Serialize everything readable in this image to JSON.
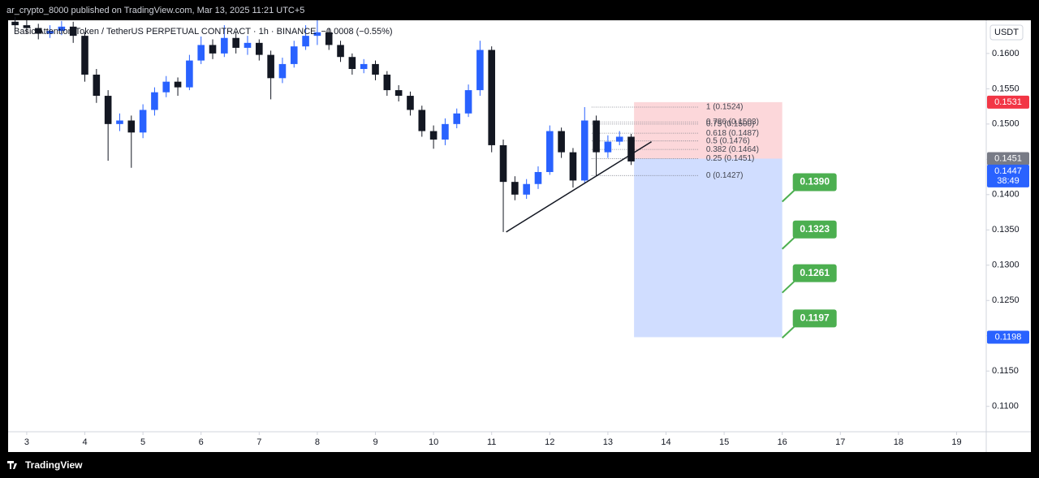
{
  "header": {
    "text": "ar_crypto_8000 published on TradingView.com, Mar 13, 2025 11:21 UTC+5"
  },
  "footer": {
    "brand": "TradingView"
  },
  "chart_data": {
    "type": "candlestick",
    "title": "Basic Attention Token / TetherUS PERPETUAL CONTRACT · 1h · BINANCE",
    "change": "−0.0008 (−0.55%)",
    "y_unit": "USDT",
    "colors": {
      "up": "#2962ff",
      "down": "#131722"
    },
    "x": [
      2.8,
      3.0,
      3.2,
      3.4,
      3.6,
      3.8,
      4.0,
      4.2,
      4.4,
      4.6,
      4.8,
      5.0,
      5.2,
      5.4,
      5.6,
      5.8,
      6.0,
      6.2,
      6.4,
      6.6,
      6.8,
      7.0,
      7.2,
      7.4,
      7.6,
      7.8,
      8.0,
      8.2,
      8.4,
      8.6,
      8.8,
      9.0,
      9.2,
      9.4,
      9.6,
      9.8,
      10.0,
      10.2,
      10.4,
      10.6,
      10.8,
      11.0,
      11.2,
      11.4,
      11.6,
      11.8,
      12.0,
      12.2,
      12.4,
      12.6,
      12.8,
      13.0,
      13.2,
      13.4
    ],
    "open": [
      0.1645,
      0.164,
      0.1636,
      0.1628,
      0.1632,
      0.1638,
      0.1625,
      0.157,
      0.154,
      0.15,
      0.1505,
      0.1488,
      0.152,
      0.1545,
      0.156,
      0.1552,
      0.159,
      0.1612,
      0.16,
      0.1622,
      0.1608,
      0.1615,
      0.1598,
      0.1565,
      0.1585,
      0.161,
      0.1625,
      0.163,
      0.1612,
      0.1595,
      0.1578,
      0.1585,
      0.157,
      0.1548,
      0.154,
      0.152,
      0.149,
      0.1478,
      0.15,
      0.1515,
      0.1548,
      0.1605,
      0.147,
      0.1418,
      0.14,
      0.1415,
      0.1432,
      0.149,
      0.146,
      0.142,
      0.1505,
      0.146,
      0.1475,
      0.1482
    ],
    "high": [
      0.1652,
      0.1648,
      0.1642,
      0.164,
      0.1646,
      0.1645,
      0.163,
      0.1578,
      0.1548,
      0.1515,
      0.1512,
      0.1528,
      0.1552,
      0.1568,
      0.1566,
      0.1598,
      0.1624,
      0.162,
      0.164,
      0.163,
      0.1625,
      0.162,
      0.1604,
      0.1594,
      0.1618,
      0.164,
      0.1647,
      0.1636,
      0.1618,
      0.16,
      0.1592,
      0.159,
      0.1575,
      0.1555,
      0.1546,
      0.1526,
      0.1498,
      0.1508,
      0.1522,
      0.1556,
      0.1618,
      0.161,
      0.1478,
      0.1426,
      0.1422,
      0.144,
      0.1498,
      0.1495,
      0.1466,
      0.1524,
      0.1512,
      0.1484,
      0.149,
      0.1486
    ],
    "low": [
      0.1634,
      0.1628,
      0.162,
      0.1622,
      0.1626,
      0.1615,
      0.156,
      0.153,
      0.1448,
      0.149,
      0.1438,
      0.148,
      0.1512,
      0.1538,
      0.154,
      0.1548,
      0.1585,
      0.1592,
      0.1595,
      0.16,
      0.1598,
      0.159,
      0.1535,
      0.1558,
      0.158,
      0.1605,
      0.1612,
      0.1605,
      0.1588,
      0.157,
      0.1572,
      0.1562,
      0.154,
      0.1532,
      0.1512,
      0.1482,
      0.1465,
      0.147,
      0.1494,
      0.151,
      0.154,
      0.146,
      0.1347,
      0.1392,
      0.1394,
      0.1408,
      0.1428,
      0.1452,
      0.141,
      0.1416,
      0.1427,
      0.1452,
      0.147,
      0.1442
    ],
    "close": [
      0.164,
      0.1636,
      0.1628,
      0.1632,
      0.1638,
      0.1625,
      0.157,
      0.154,
      0.15,
      0.1505,
      0.1488,
      0.152,
      0.1545,
      0.156,
      0.1552,
      0.159,
      0.1612,
      0.16,
      0.1622,
      0.1608,
      0.1615,
      0.1598,
      0.1565,
      0.1585,
      0.161,
      0.1625,
      0.163,
      0.1612,
      0.1595,
      0.1578,
      0.1585,
      0.157,
      0.1548,
      0.154,
      0.152,
      0.149,
      0.1478,
      0.15,
      0.1515,
      0.1548,
      0.1605,
      0.147,
      0.1418,
      0.14,
      0.1415,
      0.1432,
      0.149,
      0.146,
      0.142,
      0.1505,
      0.146,
      0.1475,
      0.1482,
      0.1447
    ],
    "xlim": [
      2.68,
      19.51
    ],
    "xticks": [
      3,
      4,
      5,
      6,
      7,
      8,
      9,
      10,
      11,
      12,
      13,
      14,
      15,
      16,
      17,
      18,
      19
    ],
    "ylim": [
      0.1064,
      0.1647
    ],
    "yticks": [
      {
        "value": 0.16,
        "label": "0.1600"
      },
      {
        "value": 0.155,
        "label": "0.1550"
      },
      {
        "value": 0.15,
        "label": "0.1500"
      },
      {
        "value": 0.145,
        "label": "0.1450"
      },
      {
        "value": 0.14,
        "label": "0.1400"
      },
      {
        "value": 0.135,
        "label": "0.1350"
      },
      {
        "value": 0.13,
        "label": "0.1300"
      },
      {
        "value": 0.125,
        "label": "0.1250"
      },
      {
        "value": 0.12,
        "label": "0.1200"
      },
      {
        "value": 0.115,
        "label": "0.1150"
      },
      {
        "value": 0.11,
        "label": "0.1100"
      }
    ],
    "trendline": {
      "x": [
        11.25,
        13.75
      ],
      "y": [
        0.1347,
        0.1475
      ]
    },
    "fib": {
      "x": [
        12.72,
        14.55
      ],
      "levels": [
        {
          "value": 0.1524,
          "label": "1 (0.1524)"
        },
        {
          "value": 0.1503,
          "label": "0.786 (0.1503)"
        },
        {
          "value": 0.15,
          "label": "0.75 (0.1500)"
        },
        {
          "value": 0.1487,
          "label": "0.618 (0.1487)"
        },
        {
          "value": 0.1476,
          "label": "0.5 (0.1476)"
        },
        {
          "value": 0.1464,
          "label": "0.382 (0.1464)"
        },
        {
          "value": 0.1451,
          "label": "0.25 (0.1451)"
        },
        {
          "value": 0.1427,
          "label": "0 (0.1427)"
        }
      ]
    },
    "position": {
      "x": [
        13.45,
        16.0
      ],
      "stop": 0.1531,
      "entry": 0.1451,
      "target": 0.1198
    },
    "targets": [
      {
        "value": 0.139,
        "label": "0.1390"
      },
      {
        "value": 0.1323,
        "label": "0.1323"
      },
      {
        "value": 0.1261,
        "label": "0.1261"
      },
      {
        "value": 0.1197,
        "label": "0.1197"
      }
    ],
    "price_badges": [
      {
        "value": 0.1531,
        "label": "0.1531",
        "color": "#f23645"
      },
      {
        "value": 0.1451,
        "label": "0.1451",
        "color": "#787b86"
      },
      {
        "value": 0.1447,
        "label": "0.1447",
        "color": "#2962ff",
        "sub": "38:49"
      },
      {
        "value": 0.1198,
        "label": "0.1198",
        "color": "#2962ff"
      }
    ]
  }
}
